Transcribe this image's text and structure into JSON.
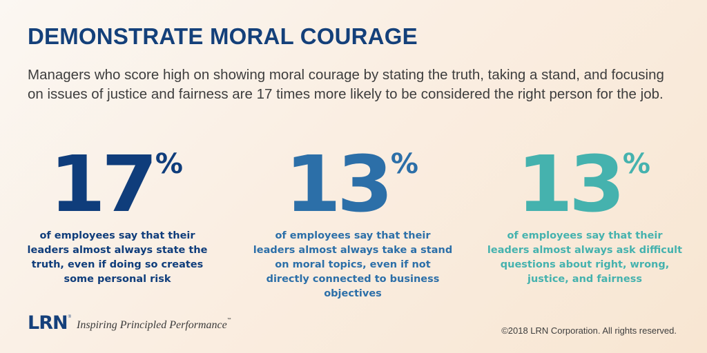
{
  "title": "DEMONSTRATE MORAL COURAGE",
  "intro": "Managers who score high on showing moral courage by stating the truth, taking a stand, and focusing on issues of justice and fairness are 17 times more likely to be considered the right person for the job.",
  "stats": [
    {
      "number": "17",
      "percent_sign": "%",
      "description": "of employees say that their leaders almost always state the truth, even if doing so creates some personal risk",
      "color": "#0f3d7b"
    },
    {
      "number": "13",
      "percent_sign": "%",
      "description": "of employees say that their leaders almost always take a stand on moral topics, even if not directly connected to business objectives",
      "color": "#2c6fa8"
    },
    {
      "number": "13",
      "percent_sign": "%",
      "description": "of employees say that their leaders almost always ask difficult questions about right, wrong, justice, and fairness",
      "color": "#45b2ae"
    }
  ],
  "footer": {
    "logo_text": "LRN",
    "logo_registered": "®",
    "tagline": "Inspiring Principled Performance",
    "tagline_mark": "™",
    "copyright": "©2018 LRN Corporation. All rights reserved."
  },
  "colors": {
    "title": "#14407a",
    "body_text": "#3d3d3d"
  }
}
